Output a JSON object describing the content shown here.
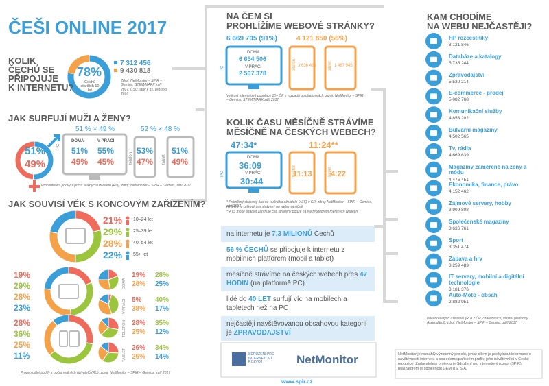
{
  "title": "ČEŠI ONLINE 2017",
  "colors": [
    "#ef6b5b",
    "#9bc53d",
    "#f4a24a",
    "#3a9fd9"
  ],
  "internet": {
    "question": [
      "KOLIK",
      "ČECHŮ SE",
      "PŘIPOJUJE",
      "K INTERNETU?"
    ],
    "percent": {
      "value": 78,
      "label": "78%"
    },
    "note": "Čechů starších 10 let",
    "users": "7 312 456",
    "population": "9 430 818",
    "source": "Zdroj: NetMonitor – SPIR – Gemius, STEM/MARK září 2017, ČSÚ, stav k 31. prosinci 2016"
  },
  "gender": {
    "question": "JAK SURFUJÍ MUŽI A ŽENY?",
    "men": {
      "value": 51,
      "label": "51%"
    },
    "women": {
      "value": 49,
      "label": "49%"
    },
    "pc_split": "51 % × 49 %",
    "mobile_split": "52 % × 48 %",
    "pc_label": "PC",
    "home_label": "DOMA",
    "home": [
      "51%",
      "49%"
    ],
    "work_label": "V PRÁCI",
    "work": [
      "55%",
      "45%"
    ],
    "phone_label": "telefon",
    "phone": [
      "53%",
      "47%"
    ],
    "tablet_label": "tablet",
    "tablet": [
      "51%",
      "49%"
    ],
    "source": "Procentuální podíly z počtu reálných uživatelů (RU), zdroj: NetMonitor – SPIR – Gemius, září 2017"
  },
  "age": {
    "question": "JAK SOUVISÍ VĚK S KONCOVÝM ZAŘÍZENÍM?",
    "groups": [
      {
        "label": "10–24 let",
        "share": {
          "value": 21,
          "label": "21%"
        }
      },
      {
        "label": "25–39 let",
        "share": {
          "value": 29,
          "label": "29%"
        }
      },
      {
        "label": "40–54 let",
        "share": {
          "value": 28,
          "label": "28%"
        }
      },
      {
        "label": "55+ let",
        "share": {
          "value": 22,
          "label": "22%"
        }
      }
    ],
    "rows": [
      {
        "overall": [
          {
            "value": 19,
            "label": "19%"
          },
          {
            "value": 29,
            "label": "29%"
          },
          {
            "value": 28,
            "label": "28%"
          },
          {
            "value": 23,
            "label": "23%"
          }
        ],
        "sub": [
          {
            "name": "DOMA",
            "values": [
              {
                "value": 19,
                "label": "19%"
              },
              {
                "value": 28,
                "label": "28%"
              },
              {
                "value": 28,
                "label": "28%"
              },
              {
                "value": 25,
                "label": "25%"
              }
            ]
          },
          {
            "name": "V PRÁCI",
            "values": [
              {
                "value": 5,
                "label": "5%"
              },
              {
                "value": 40,
                "label": "40%"
              },
              {
                "value": 38,
                "label": "38%"
              },
              {
                "value": 17,
                "label": "17%"
              }
            ]
          }
        ]
      },
      {
        "overall": [
          {
            "value": 28,
            "label": "28%"
          },
          {
            "value": 36,
            "label": "36%"
          },
          {
            "value": 25,
            "label": "25%"
          },
          {
            "value": 11,
            "label": "11%"
          }
        ],
        "sub": [
          {
            "name": "TELEFON",
            "values": [
              {
                "value": 28,
                "label": "28%"
              },
              {
                "value": 35,
                "label": "35%"
              },
              {
                "value": 25,
                "label": "25%"
              },
              {
                "value": 12,
                "label": "12%"
              }
            ]
          },
          {
            "name": "TABLET",
            "values": [
              {
                "value": 26,
                "label": "26%"
              },
              {
                "value": 34,
                "label": "34%"
              },
              {
                "value": 26,
                "label": "26%"
              },
              {
                "value": 14,
                "label": "14%"
              }
            ]
          }
        ]
      }
    ],
    "source": "Procentuální podíly z počtu reálných uživatelů (RU), zdroj: NetMonitor – SPIR – Gemius, září 2017"
  },
  "devices": {
    "question": [
      "NA ČEM SI",
      "PROHLÍŽÍME WEBOVÉ STRÁNKY?"
    ],
    "pc_total": "6 669 705 (91%)",
    "mobile_total": "4 121 850 (56%)",
    "pc_label": "PC",
    "home_label": "DOMA",
    "home": "6 654 506",
    "work_label": "V PRÁCI",
    "work": "2 507 378",
    "phone_label": "telefon",
    "phone": "3 636 485",
    "tablet_label": "tablet",
    "tablet": "1 487 945",
    "source": "Velikost internetové populace 10+ ČR v rozpadu po platformách, zdroj: NetMonitor – SPIR – Gemius, STEM/MARK září 2017"
  },
  "time": {
    "question": [
      "KOLIK ČASU MĚSÍČNĚ STRÁVÍME",
      "MĚSÍČNĚ NA ČESKÝCH WEBECH?"
    ],
    "pc_total": "47:34*",
    "mobile_total": "11:24**",
    "pc_label": "PC",
    "home_label": "DOMA",
    "home": "36:09",
    "work_label": "V PRÁCI",
    "work": "30:44",
    "phone_label": "telefon",
    "phone": "11:13",
    "tablet_label": "tablet",
    "tablet": "4:22",
    "notes": [
      "* Průměrný strávený čas na reálného uživatele (ATS) v ČR, zdroj: NetMonitor – SPIR – Gemius, září 2017",
      "ATS RU je celkový čas strávený na webu měsíčně",
      "**ATS mobil a tablet zahrnuje čas strávený pouze na NetMonitorem měřených webech"
    ]
  },
  "highlights": [
    {
      "before": "na internetu je ",
      "highlight": "7,3 MILIONŮ",
      "after": " Čechů"
    },
    {
      "highlight": "56 % ČECHŮ",
      "after": " se připojuje k internetu z mobilních platforem (mobil a tablet)"
    },
    {
      "before": "měsíčně strávíme na českých webech přes ",
      "highlight": "47 HODIN",
      "after": " (na platformě PC)"
    },
    {
      "before": "lidé do ",
      "highlight": "40 LET",
      "after": " surfují víc na mobilech a tabletech než na PC"
    },
    {
      "before": "nejčastěji navštěvovanou obsahovou kategorií je ",
      "highlight": "ZPRAVODAJSTVÍ"
    }
  ],
  "sites": {
    "question": [
      "KAM CHODÍME",
      "NA WEBU NEJČASTĚJI?"
    ],
    "items": [
      {
        "name": "HP rozcestníky",
        "users": "8 121 846"
      },
      {
        "name": "Databáze a katalogy",
        "users": "5 735 244"
      },
      {
        "name": "Zpravodajství",
        "users": "5 530 214"
      },
      {
        "name": "E-commerce - prodej",
        "users": "5 082 768"
      },
      {
        "name": "Komunikační služby",
        "users": "4 853 202"
      },
      {
        "name": "Bulvární magazíny",
        "users": "4 502 565"
      },
      {
        "name": "Tv, rádia",
        "users": "4 669 639"
      },
      {
        "name": "Magazíny zaměřené na ženy a módu",
        "users": "4 476 451"
      },
      {
        "name": "Ekonomika, finance, právo",
        "users": "4 152 462"
      },
      {
        "name": "Zájmové servery, hobby",
        "users": "3 909 808"
      },
      {
        "name": "Společenské magazíny",
        "users": "3 636 761"
      },
      {
        "name": "Sport",
        "users": "3 351 474"
      },
      {
        "name": "Zábava a hry",
        "users": "3 259 483"
      },
      {
        "name": "IT servery, mobilní a digitální technologie",
        "users": "3 181 376"
      },
      {
        "name": "Auto-Moto - obsah",
        "users": "2 882 951"
      }
    ],
    "source": "Počet reálných uživatelů (RU) z ČR v zařazeních, vlastní platformy (kalendářní), zdroj: NetMonitor – SPIR – Gemius, září 2017"
  },
  "footer": {
    "spir": "SDRUŽENÍ PRO INTERNETOVÝ ROZVOJ",
    "netmonitor": "NetMonitor",
    "url": "www.spir.cz",
    "about": "NetMonitor je rozsáhlý výzkumný projekt, jehož cílem je poskytnout informace o návštěvnosti internetu a sociodemografickém profilu jeho návštěvníků v České republice. Zadavatelem projektu je Sdružení pro internetový rozvoj (SPIR), realizátorem je společnost GEMIUS, S.A."
  }
}
